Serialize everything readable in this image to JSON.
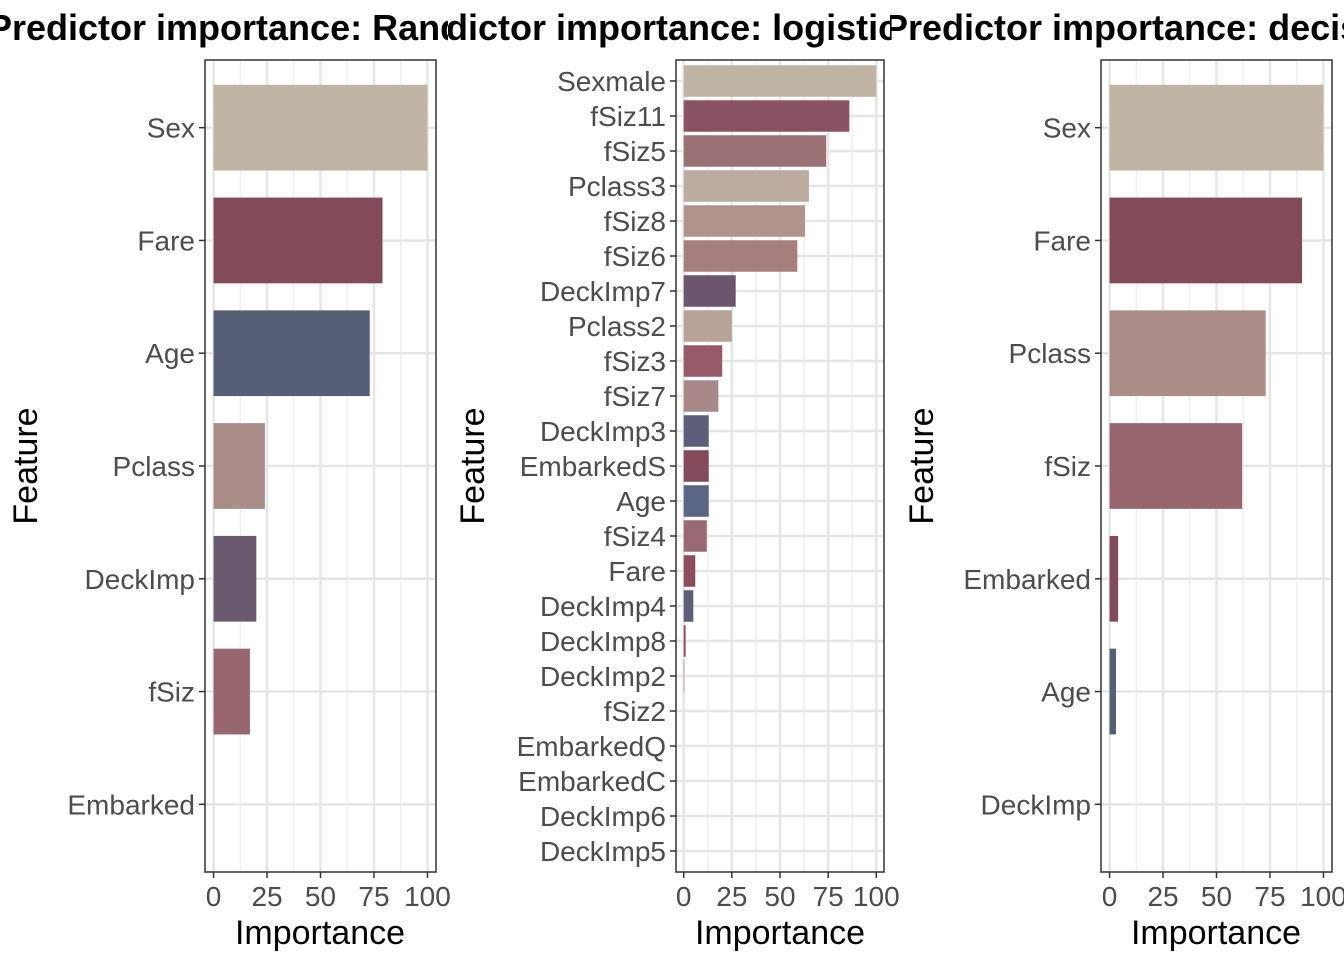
{
  "chart_data": [
    {
      "type": "bar",
      "orientation": "horizontal",
      "title": "Predictor importance: Random Forest",
      "xlabel": "Importance",
      "ylabel": "Feature",
      "xlim": [
        0,
        100
      ],
      "xticks": [
        "0",
        "25",
        "50",
        "75",
        "100"
      ],
      "grid": true,
      "categories": [
        "Sex",
        "Fare",
        "Age",
        "Pclass",
        "DeckImp",
        "fSiz",
        "Embarked"
      ],
      "values": [
        100,
        79,
        73,
        24,
        20,
        17,
        0
      ],
      "colors": [
        "#bfb3a4",
        "#834a59",
        "#575f76",
        "#ab8e89",
        "#695a6f",
        "#97666f",
        "#8b5a66"
      ]
    },
    {
      "type": "bar",
      "orientation": "horizontal",
      "title": "Predictor importance: logistic regression",
      "xlabel": "Importance",
      "ylabel": "Feature",
      "xlim": [
        0,
        100
      ],
      "xticks": [
        "0",
        "25",
        "50",
        "75",
        "100"
      ],
      "grid": true,
      "categories": [
        "Sexmale",
        "fSiz11",
        "fSiz5",
        "Pclass3",
        "fSiz8",
        "fSiz6",
        "DeckImp7",
        "Pclass2",
        "fSiz3",
        "fSiz7",
        "DeckImp3",
        "EmbarkedS",
        "Age",
        "fSiz4",
        "Fare",
        "DeckImp4",
        "DeckImp8",
        "DeckImp2",
        "fSiz2",
        "EmbarkedQ",
        "EmbarkedC",
        "DeckImp6",
        "DeckImp5"
      ],
      "values": [
        100,
        86,
        74,
        65,
        63,
        59,
        27,
        25,
        20,
        18,
        13,
        13,
        13,
        12,
        6,
        5,
        1,
        0.3,
        0,
        0,
        0,
        0,
        0
      ],
      "colors": [
        "#bfb3a4",
        "#8a5363",
        "#9c7176",
        "#bcaa9f",
        "#b0938c",
        "#a67e7e",
        "#6d566d",
        "#b8a398",
        "#975a68",
        "#a9888a",
        "#5d5f7a",
        "#834a5c",
        "#5a6683",
        "#9a6a74",
        "#8d4c5e",
        "#5f5e78",
        "#8d4c5e",
        "#9a8a8a",
        "#cccccc",
        "#cccccc",
        "#cccccc",
        "#cccccc",
        "#cccccc"
      ]
    },
    {
      "type": "bar",
      "orientation": "horizontal",
      "title": "Predictor importance: decision tree",
      "xlabel": "Importance",
      "ylabel": "Feature",
      "xlim": [
        0,
        100
      ],
      "xticks": [
        "0",
        "25",
        "50",
        "75",
        "100"
      ],
      "grid": true,
      "categories": [
        "Sex",
        "Fare",
        "Pclass",
        "fSiz",
        "Embarked",
        "Age",
        "DeckImp"
      ],
      "values": [
        100,
        90,
        73,
        62,
        4,
        3,
        0
      ],
      "colors": [
        "#bfb3a4",
        "#834a59",
        "#ab8e89",
        "#97666f",
        "#834a5c",
        "#575f76",
        "#695a6f"
      ]
    }
  ]
}
